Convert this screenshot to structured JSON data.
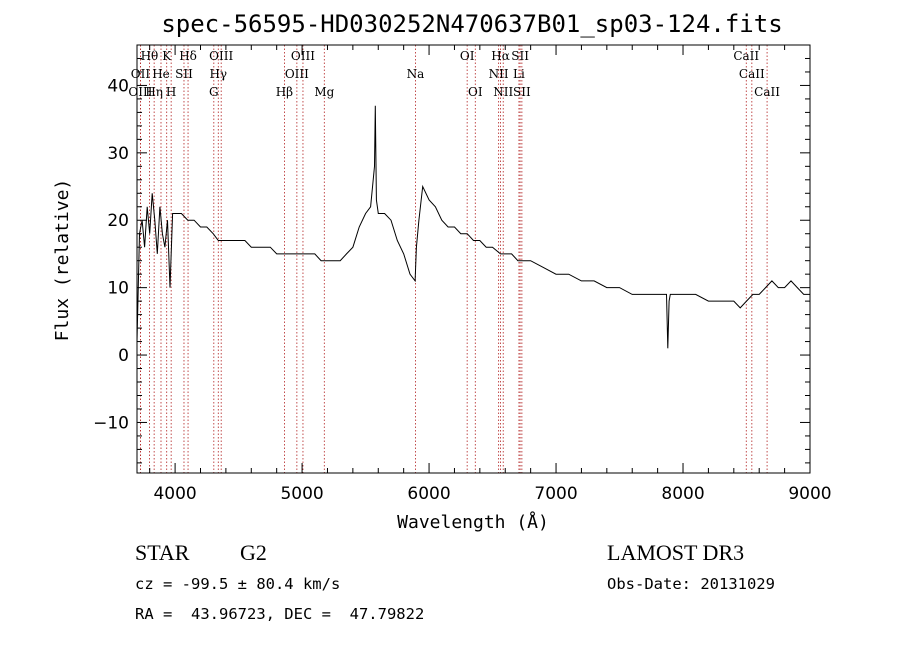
{
  "chart_data": {
    "type": "line",
    "title": "spec-56595-HD030252N470637B01_sp03-124.fits",
    "xlabel": "Wavelength (Å)",
    "ylabel": "Flux (relative)",
    "xlim": [
      3700,
      9000
    ],
    "ylim": [
      -17.5,
      46
    ],
    "xticks": [
      4000,
      5000,
      6000,
      7000,
      8000,
      9000
    ],
    "yticks": [
      -10,
      0,
      10,
      20,
      30,
      40
    ],
    "grid": false,
    "series": [
      {
        "x": [
          3700,
          3720,
          3740,
          3760,
          3780,
          3800,
          3820,
          3840,
          3860,
          3880,
          3900,
          3920,
          3940,
          3960,
          3980,
          4000,
          4050,
          4100,
          4150,
          4200,
          4250,
          4300,
          4340,
          4400,
          4450,
          4500,
          4550,
          4600,
          4650,
          4700,
          4750,
          4800,
          4861,
          4900,
          4950,
          5000,
          5050,
          5100,
          5150,
          5200,
          5250,
          5300,
          5350,
          5400,
          5450,
          5500,
          5540,
          5570,
          5577,
          5585,
          5600,
          5650,
          5700,
          5750,
          5800,
          5850,
          5890,
          5900,
          5920,
          5950,
          6000,
          6050,
          6100,
          6150,
          6200,
          6250,
          6300,
          6350,
          6400,
          6450,
          6500,
          6563,
          6600,
          6650,
          6700,
          6800,
          6900,
          7000,
          7100,
          7200,
          7300,
          7400,
          7500,
          7600,
          7700,
          7800,
          7870,
          7880,
          7890,
          7900,
          8000,
          8100,
          8200,
          8300,
          8400,
          8450,
          8500,
          8550,
          8600,
          8650,
          8700,
          8750,
          8800,
          8850,
          8900,
          8950,
          9000
        ],
        "y": [
          2,
          18,
          20,
          16,
          22,
          18,
          24,
          20,
          15,
          22,
          18,
          16,
          20,
          10,
          21,
          21,
          21,
          20,
          20,
          19,
          19,
          18,
          17,
          17,
          17,
          17,
          17,
          16,
          16,
          16,
          16,
          15,
          15,
          15,
          15,
          15,
          15,
          15,
          14,
          14,
          14,
          14,
          15,
          16,
          19,
          21,
          22,
          28,
          37,
          23,
          21,
          21,
          20,
          17,
          15,
          12,
          11,
          16,
          20,
          25,
          23,
          22,
          20,
          19,
          19,
          18,
          18,
          17,
          17,
          16,
          16,
          15,
          15,
          15,
          14,
          14,
          13,
          12,
          12,
          11,
          11,
          10,
          10,
          9,
          9,
          9,
          9,
          1,
          8,
          9,
          9,
          9,
          8,
          8,
          8,
          7,
          8,
          9,
          9,
          10,
          11,
          10,
          10,
          11,
          10,
          9,
          9
        ]
      }
    ],
    "spectral_lines": [
      {
        "label": "Hθ",
        "x": 3798,
        "row": 0
      },
      {
        "label": "K",
        "x": 3934,
        "row": 0
      },
      {
        "label": "Hδ",
        "x": 4102,
        "row": 0
      },
      {
        "label": "OIII",
        "x": 4363,
        "row": 0
      },
      {
        "label": "OIII",
        "x": 5007,
        "row": 0
      },
      {
        "label": "OI",
        "x": 6300,
        "row": 0
      },
      {
        "label": "Hα",
        "x": 6563,
        "row": 0
      },
      {
        "label": "SII",
        "x": 6717,
        "row": 0
      },
      {
        "label": "CaII",
        "x": 8498,
        "row": 0
      },
      {
        "label": "OII",
        "x": 3727,
        "row": 1
      },
      {
        "label": "He",
        "x": 3889,
        "row": 1
      },
      {
        "label": "SII",
        "x": 4070,
        "row": 1
      },
      {
        "label": "Hγ",
        "x": 4340,
        "row": 1
      },
      {
        "label": "OIII",
        "x": 4959,
        "row": 1
      },
      {
        "label": "NII",
        "x": 6548,
        "row": 1
      },
      {
        "label": "Li",
        "x": 6708,
        "row": 1
      },
      {
        "label": "CaII",
        "x": 8542,
        "row": 1
      },
      {
        "label": "OIII",
        "x": 3727,
        "row": 2
      },
      {
        "label": "Hη",
        "x": 3835,
        "row": 2
      },
      {
        "label": "H",
        "x": 3969,
        "row": 2
      },
      {
        "label": "G",
        "x": 4305,
        "row": 2
      },
      {
        "label": "Hβ",
        "x": 4861,
        "row": 2
      },
      {
        "label": "Mg",
        "x": 5175,
        "row": 2
      },
      {
        "label": "Na",
        "x": 5893,
        "row": 1
      },
      {
        "label": "OI",
        "x": 6364,
        "row": 2
      },
      {
        "label": "NII",
        "x": 6584,
        "row": 2
      },
      {
        "label": "SII",
        "x": 6731,
        "row": 2
      },
      {
        "label": "CaII",
        "x": 8662,
        "row": 2
      }
    ]
  },
  "info": {
    "object_class": "STAR",
    "subclass": "G2",
    "survey": "LAMOST DR3",
    "redshift": "cz = -99.5 ± 80.4 km/s",
    "obs_date": "Obs-Date: 20131029",
    "coords": "RA =  43.96723, DEC =  47.79822"
  },
  "colors": {
    "line_marker": "#b22222",
    "spectrum": "#000000"
  }
}
